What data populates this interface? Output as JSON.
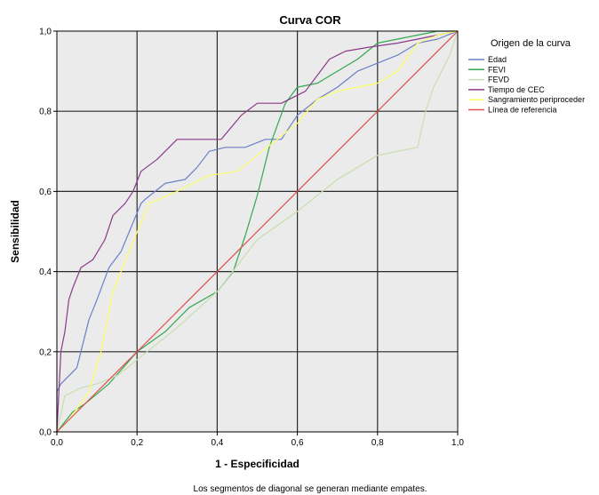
{
  "chart_data": {
    "type": "line",
    "title": "Curva COR",
    "xlabel": "1 - Especificidad",
    "ylabel": "Sensibilidad",
    "xlim": [
      0,
      1
    ],
    "ylim": [
      0,
      1
    ],
    "xticks": [
      "0,0",
      "0,2",
      "0,4",
      "0,6",
      "0,8",
      "1,0"
    ],
    "yticks": [
      "0,0",
      "0,2",
      "0,4",
      "0,6",
      "0,8",
      "1,0"
    ],
    "grid": true,
    "legend_title": "Origen de la curva",
    "legend_position": "right",
    "footnote": "Los segmentos de diagonal se generan mediante empates.",
    "series": [
      {
        "name": "Edad",
        "color": "#6b80c6",
        "points": [
          [
            0,
            0
          ],
          [
            0,
            0.1
          ],
          [
            0.01,
            0.12
          ],
          [
            0.05,
            0.16
          ],
          [
            0.08,
            0.28
          ],
          [
            0.1,
            0.33
          ],
          [
            0.13,
            0.41
          ],
          [
            0.16,
            0.45
          ],
          [
            0.21,
            0.57
          ],
          [
            0.22,
            0.58
          ],
          [
            0.27,
            0.62
          ],
          [
            0.32,
            0.63
          ],
          [
            0.35,
            0.66
          ],
          [
            0.38,
            0.7
          ],
          [
            0.42,
            0.71
          ],
          [
            0.47,
            0.71
          ],
          [
            0.52,
            0.73
          ],
          [
            0.56,
            0.73
          ],
          [
            0.6,
            0.79
          ],
          [
            0.65,
            0.83
          ],
          [
            0.7,
            0.86
          ],
          [
            0.75,
            0.9
          ],
          [
            0.8,
            0.92
          ],
          [
            0.85,
            0.94
          ],
          [
            0.9,
            0.97
          ],
          [
            0.95,
            0.98
          ],
          [
            1,
            1
          ]
        ]
      },
      {
        "name": "FEVI",
        "color": "#33a852",
        "points": [
          [
            0,
            0
          ],
          [
            0.04,
            0.05
          ],
          [
            0.07,
            0.07
          ],
          [
            0.13,
            0.12
          ],
          [
            0.2,
            0.2
          ],
          [
            0.27,
            0.25
          ],
          [
            0.33,
            0.31
          ],
          [
            0.4,
            0.35
          ],
          [
            0.44,
            0.4
          ],
          [
            0.47,
            0.49
          ],
          [
            0.5,
            0.59
          ],
          [
            0.53,
            0.71
          ],
          [
            0.57,
            0.82
          ],
          [
            0.6,
            0.86
          ],
          [
            0.65,
            0.87
          ],
          [
            0.7,
            0.9
          ],
          [
            0.75,
            0.93
          ],
          [
            0.8,
            0.97
          ],
          [
            0.85,
            0.98
          ],
          [
            0.9,
            0.99
          ],
          [
            0.95,
            1
          ],
          [
            1,
            1
          ]
        ]
      },
      {
        "name": "FEVD",
        "color": "#c8deb0",
        "points": [
          [
            0,
            0
          ],
          [
            0.02,
            0.09
          ],
          [
            0.06,
            0.11
          ],
          [
            0.1,
            0.12
          ],
          [
            0.15,
            0.14
          ],
          [
            0.2,
            0.18
          ],
          [
            0.3,
            0.26
          ],
          [
            0.4,
            0.35
          ],
          [
            0.5,
            0.48
          ],
          [
            0.6,
            0.55
          ],
          [
            0.7,
            0.63
          ],
          [
            0.75,
            0.66
          ],
          [
            0.8,
            0.69
          ],
          [
            0.9,
            0.71
          ],
          [
            0.92,
            0.8
          ],
          [
            0.94,
            0.86
          ],
          [
            0.96,
            0.9
          ],
          [
            0.98,
            0.94
          ],
          [
            1,
            1
          ]
        ]
      },
      {
        "name": "Tiempo de CEC",
        "color": "#8b3a8b",
        "points": [
          [
            0,
            0
          ],
          [
            0.01,
            0.2
          ],
          [
            0.02,
            0.25
          ],
          [
            0.03,
            0.33
          ],
          [
            0.04,
            0.36
          ],
          [
            0.06,
            0.41
          ],
          [
            0.09,
            0.43
          ],
          [
            0.12,
            0.48
          ],
          [
            0.14,
            0.54
          ],
          [
            0.17,
            0.57
          ],
          [
            0.19,
            0.6
          ],
          [
            0.21,
            0.65
          ],
          [
            0.25,
            0.68
          ],
          [
            0.3,
            0.73
          ],
          [
            0.35,
            0.73
          ],
          [
            0.41,
            0.73
          ],
          [
            0.46,
            0.79
          ],
          [
            0.5,
            0.82
          ],
          [
            0.56,
            0.82
          ],
          [
            0.62,
            0.85
          ],
          [
            0.68,
            0.93
          ],
          [
            0.72,
            0.95
          ],
          [
            0.78,
            0.96
          ],
          [
            0.85,
            0.97
          ],
          [
            0.9,
            0.98
          ],
          [
            0.95,
            0.99
          ],
          [
            1,
            1
          ]
        ]
      },
      {
        "name": "Sangramiento periproceder",
        "color": "#ffff66",
        "points": [
          [
            0,
            0
          ],
          [
            0.03,
            0.03
          ],
          [
            0.08,
            0.1
          ],
          [
            0.11,
            0.2
          ],
          [
            0.14,
            0.35
          ],
          [
            0.18,
            0.45
          ],
          [
            0.23,
            0.57
          ],
          [
            0.3,
            0.6
          ],
          [
            0.38,
            0.64
          ],
          [
            0.45,
            0.65
          ],
          [
            0.5,
            0.69
          ],
          [
            0.55,
            0.73
          ],
          [
            0.6,
            0.77
          ],
          [
            0.65,
            0.83
          ],
          [
            0.7,
            0.85
          ],
          [
            0.75,
            0.86
          ],
          [
            0.8,
            0.87
          ],
          [
            0.85,
            0.9
          ],
          [
            0.9,
            0.97
          ],
          [
            0.95,
            0.99
          ],
          [
            1,
            1
          ]
        ]
      },
      {
        "name": "Línea de referencia",
        "color": "#e05050",
        "points": [
          [
            0,
            0
          ],
          [
            1,
            1
          ]
        ]
      }
    ]
  },
  "style": {
    "plot_background": "#ebebeb",
    "grid_color": "#2a2a2a"
  }
}
